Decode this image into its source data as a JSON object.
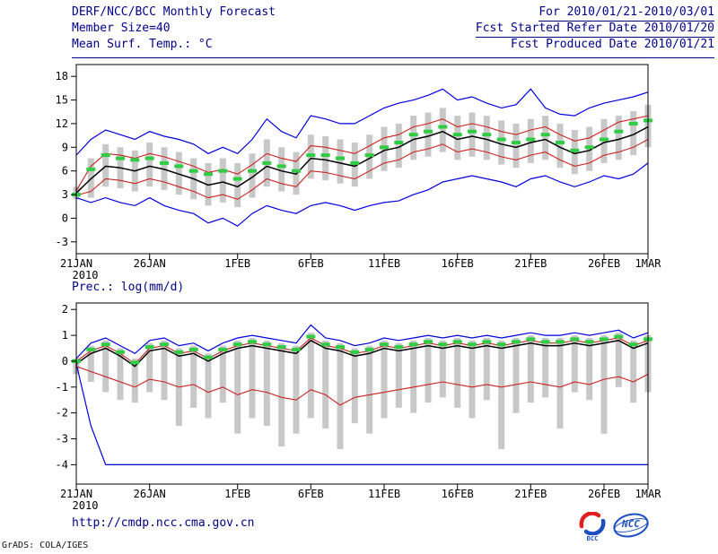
{
  "header": {
    "left": [
      "DERF/NCC/BCC Monthly Forecast",
      "Member Size=40",
      "Mean Surf. Temp.: °C"
    ],
    "right": [
      "For 2010/01/21-2010/03/01",
      "Fcst Started Refer Date 2010/01/20",
      "Fcst Produced Date 2010/01/21"
    ]
  },
  "footer": {
    "url": "http://cmdp.ncc.cma.gov.cn",
    "stamp": "GrADS: COLA/IGES"
  },
  "logos": {
    "bcc": "BCC",
    "ncc": "NCC"
  },
  "colors": {
    "header_text": "#00008b",
    "frame": "#000000",
    "axis_text": "#000000",
    "bar": "#c8c8c8",
    "blue": "#0000e0",
    "red": "#cc2222",
    "black": "#000000",
    "green": "#2fcc44",
    "logo_red": "#e02020",
    "logo_blue": "#1a4fc0"
  },
  "chart_data": [
    {
      "id": "temp-chart",
      "type": "line",
      "title": "Mean Surf. Temp.: °C",
      "xlabel": "",
      "ylabel": "°C",
      "ylim": [
        -3,
        18
      ],
      "ylim_draw": [
        -4.5,
        19.5
      ],
      "yticks": [
        18,
        15,
        12,
        9,
        6,
        3,
        0,
        -3
      ],
      "n": 40,
      "x_start": "21JAN2010",
      "x_end": "1MAR2010",
      "year_label": "2010",
      "grid": false,
      "legend": "none",
      "xticks": [
        {
          "i": 0,
          "label": "21JAN"
        },
        {
          "i": 5,
          "label": "26JAN"
        },
        {
          "i": 11,
          "label": "1FEB"
        },
        {
          "i": 16,
          "label": "6FEB"
        },
        {
          "i": 21,
          "label": "11FEB"
        },
        {
          "i": 26,
          "label": "16FEB"
        },
        {
          "i": 31,
          "label": "21FEB"
        },
        {
          "i": 36,
          "label": "26FEB"
        },
        {
          "i": 39,
          "label": "1MAR"
        }
      ],
      "series": {
        "ens_mean": [
          3.2,
          5.0,
          6.6,
          6.4,
          6.0,
          6.6,
          6.2,
          5.6,
          5.0,
          4.2,
          4.6,
          4.0,
          5.2,
          6.6,
          6.0,
          5.6,
          7.6,
          7.4,
          7.0,
          6.6,
          7.6,
          8.6,
          9.0,
          10.0,
          10.4,
          11.0,
          10.0,
          10.4,
          10.0,
          9.4,
          9.0,
          9.6,
          10.0,
          9.0,
          8.2,
          8.6,
          9.6,
          10.0,
          10.6,
          11.6
        ],
        "sd_upper": [
          3.5,
          6.6,
          8.2,
          8.0,
          7.6,
          8.2,
          7.8,
          7.2,
          6.6,
          5.8,
          6.2,
          5.6,
          6.8,
          8.2,
          7.6,
          7.2,
          9.2,
          9.0,
          8.6,
          8.2,
          9.2,
          10.2,
          10.6,
          11.6,
          12.0,
          12.6,
          11.6,
          12.0,
          11.6,
          11.0,
          10.6,
          11.2,
          11.6,
          10.6,
          9.8,
          10.2,
          11.2,
          12.2,
          12.6,
          13.0
        ],
        "sd_lower": [
          2.9,
          3.4,
          5.0,
          4.8,
          4.4,
          5.0,
          4.6,
          4.0,
          3.4,
          2.6,
          3.0,
          2.4,
          3.6,
          5.0,
          4.4,
          4.0,
          6.0,
          5.8,
          5.4,
          5.0,
          6.0,
          7.0,
          7.4,
          8.4,
          8.8,
          9.4,
          8.4,
          8.8,
          8.4,
          7.8,
          7.4,
          8.0,
          8.4,
          7.4,
          6.6,
          7.0,
          8.0,
          8.4,
          9.0,
          10.0
        ],
        "ens_max": [
          8.0,
          10.0,
          11.2,
          10.6,
          10.0,
          11.0,
          10.4,
          10.0,
          9.4,
          8.2,
          9.0,
          8.2,
          10.0,
          12.6,
          11.0,
          10.2,
          13.0,
          12.6,
          12.0,
          12.0,
          13.0,
          14.0,
          14.6,
          15.0,
          15.6,
          16.4,
          15.0,
          15.4,
          14.6,
          14.0,
          14.4,
          16.4,
          14.0,
          13.2,
          13.0,
          14.0,
          14.6,
          15.0,
          15.4,
          16.0
        ],
        "ens_min": [
          2.6,
          2.0,
          2.6,
          2.0,
          1.6,
          2.6,
          1.6,
          1.0,
          0.6,
          -0.6,
          0.0,
          -1.0,
          0.6,
          1.6,
          1.0,
          0.6,
          1.6,
          2.0,
          1.6,
          1.0,
          1.6,
          2.0,
          2.2,
          3.0,
          3.6,
          4.6,
          5.0,
          5.4,
          5.0,
          4.6,
          4.0,
          5.0,
          5.4,
          4.6,
          4.0,
          4.6,
          5.4,
          5.0,
          5.6,
          7.0
        ],
        "obs": [
          3.0,
          6.2,
          8.0,
          7.6,
          7.4,
          7.6,
          7.0,
          6.6,
          6.0,
          5.6,
          6.0,
          5.0,
          6.0,
          7.0,
          6.6,
          6.0,
          8.0,
          8.0,
          7.6,
          7.0,
          8.0,
          9.0,
          9.6,
          10.6,
          11.0,
          11.6,
          10.6,
          11.0,
          10.6,
          10.0,
          9.6,
          10.0,
          10.6,
          9.6,
          8.6,
          9.0,
          10.0,
          11.0,
          12.0,
          12.4
        ],
        "bar_top": [
          4.0,
          7.6,
          9.4,
          9.0,
          8.6,
          9.6,
          9.0,
          8.4,
          7.6,
          7.0,
          7.6,
          7.0,
          8.2,
          10.0,
          9.0,
          8.4,
          10.6,
          10.4,
          10.0,
          9.6,
          10.6,
          11.6,
          12.0,
          13.0,
          13.4,
          14.0,
          13.0,
          13.4,
          13.0,
          12.4,
          12.0,
          12.6,
          13.0,
          12.0,
          11.2,
          11.6,
          12.6,
          13.0,
          13.6,
          14.4
        ],
        "bar_bottom": [
          2.4,
          2.6,
          4.0,
          3.8,
          3.4,
          4.0,
          3.6,
          3.0,
          2.4,
          1.6,
          2.0,
          1.4,
          2.6,
          4.0,
          3.4,
          3.0,
          5.0,
          4.8,
          4.4,
          4.0,
          5.0,
          6.0,
          6.4,
          7.4,
          7.8,
          8.4,
          7.4,
          7.8,
          7.4,
          6.8,
          6.4,
          7.0,
          7.4,
          6.4,
          5.6,
          6.0,
          7.0,
          7.4,
          8.0,
          9.0
        ]
      }
    },
    {
      "id": "precip-chart",
      "type": "line",
      "title": "Prec.: log(mm/d)",
      "xlabel": "",
      "ylabel": "log(mm/d)",
      "ylim": [
        -4,
        2
      ],
      "ylim_draw": [
        -4.75,
        2.25
      ],
      "yticks": [
        2,
        1,
        0,
        -1,
        -2,
        -3,
        -4
      ],
      "n": 40,
      "x_start": "21JAN2010",
      "x_end": "1MAR2010",
      "year_label": "2010",
      "grid": false,
      "legend": "none",
      "xticks": [
        {
          "i": 0,
          "label": "21JAN"
        },
        {
          "i": 5,
          "label": "26JAN"
        },
        {
          "i": 11,
          "label": "1FEB"
        },
        {
          "i": 16,
          "label": "6FEB"
        },
        {
          "i": 21,
          "label": "11FEB"
        },
        {
          "i": 26,
          "label": "16FEB"
        },
        {
          "i": 31,
          "label": "21FEB"
        },
        {
          "i": 36,
          "label": "26FEB"
        },
        {
          "i": 39,
          "label": "1MAR"
        }
      ],
      "series": {
        "ens_mean": [
          -0.1,
          0.3,
          0.5,
          0.2,
          -0.2,
          0.4,
          0.5,
          0.2,
          0.3,
          0.0,
          0.3,
          0.5,
          0.6,
          0.5,
          0.4,
          0.3,
          0.8,
          0.5,
          0.4,
          0.2,
          0.3,
          0.5,
          0.4,
          0.5,
          0.6,
          0.5,
          0.6,
          0.5,
          0.6,
          0.5,
          0.6,
          0.7,
          0.6,
          0.6,
          0.7,
          0.6,
          0.7,
          0.8,
          0.5,
          0.7
        ],
        "sd_upper": [
          0.0,
          0.4,
          0.6,
          0.3,
          -0.1,
          0.5,
          0.6,
          0.3,
          0.4,
          0.1,
          0.4,
          0.6,
          0.7,
          0.6,
          0.5,
          0.4,
          0.9,
          0.6,
          0.5,
          0.3,
          0.4,
          0.6,
          0.5,
          0.6,
          0.7,
          0.6,
          0.7,
          0.6,
          0.7,
          0.6,
          0.7,
          0.8,
          0.7,
          0.7,
          0.8,
          0.7,
          0.8,
          0.9,
          0.6,
          0.8
        ],
        "sd_lower": [
          -0.2,
          -0.4,
          -0.6,
          -0.8,
          -1.0,
          -0.7,
          -0.8,
          -1.0,
          -0.9,
          -1.2,
          -1.0,
          -1.3,
          -1.1,
          -1.2,
          -1.4,
          -1.5,
          -1.1,
          -1.3,
          -1.7,
          -1.4,
          -1.3,
          -1.2,
          -1.1,
          -1.0,
          -0.9,
          -0.8,
          -0.9,
          -1.0,
          -0.9,
          -1.0,
          -0.9,
          -0.8,
          -0.9,
          -1.0,
          -0.8,
          -0.9,
          -0.7,
          -0.6,
          -0.8,
          -0.5
        ],
        "ens_max": [
          0.1,
          0.7,
          0.9,
          0.6,
          0.3,
          0.8,
          0.9,
          0.6,
          0.7,
          0.4,
          0.7,
          0.9,
          1.0,
          0.9,
          0.8,
          0.7,
          1.4,
          0.9,
          0.8,
          0.6,
          0.7,
          0.9,
          0.8,
          0.9,
          1.0,
          0.9,
          1.0,
          0.9,
          1.0,
          0.9,
          1.0,
          1.1,
          1.0,
          1.0,
          1.1,
          1.0,
          1.1,
          1.2,
          0.9,
          1.1
        ],
        "ens_min": [
          -0.1,
          -2.5,
          -4,
          -4,
          -4,
          -4,
          -4,
          -4,
          -4,
          -4,
          -4,
          -4,
          -4,
          -4,
          -4,
          -4,
          -4,
          -4,
          -4,
          -4,
          -4,
          -4,
          -4,
          -4,
          -4,
          -4,
          -4,
          -4,
          -4,
          -4,
          -4,
          -4,
          -4,
          -4,
          -4,
          -4,
          -4,
          -4,
          -4,
          -4
        ],
        "obs": [
          0.0,
          0.45,
          0.65,
          0.35,
          -0.05,
          0.55,
          0.65,
          0.35,
          0.45,
          0.15,
          0.45,
          0.65,
          0.75,
          0.65,
          0.55,
          0.45,
          0.95,
          0.65,
          0.55,
          0.35,
          0.45,
          0.65,
          0.55,
          0.65,
          0.75,
          0.65,
          0.75,
          0.65,
          0.75,
          0.65,
          0.75,
          0.85,
          0.75,
          0.75,
          0.85,
          0.75,
          0.85,
          0.95,
          0.65,
          0.85
        ],
        "bar_top": [
          0.1,
          0.6,
          0.8,
          0.5,
          0.1,
          0.7,
          0.8,
          0.5,
          0.6,
          0.3,
          0.6,
          0.8,
          0.9,
          0.8,
          0.7,
          0.6,
          1.1,
          0.8,
          0.7,
          0.5,
          0.6,
          0.8,
          0.7,
          0.8,
          0.9,
          0.8,
          0.9,
          0.8,
          0.9,
          0.8,
          0.9,
          1.0,
          0.9,
          0.9,
          1.0,
          0.9,
          1.0,
          1.1,
          0.8,
          1.0
        ],
        "bar_bottom": [
          -0.5,
          -0.8,
          -1.2,
          -1.5,
          -1.6,
          -1.2,
          -1.5,
          -2.5,
          -1.8,
          -2.2,
          -1.6,
          -2.8,
          -2.2,
          -2.5,
          -3.3,
          -2.8,
          -2.2,
          -2.6,
          -3.4,
          -2.4,
          -2.8,
          -2.2,
          -1.8,
          -2.0,
          -1.6,
          -1.4,
          -1.8,
          -2.2,
          -1.5,
          -3.4,
          -2.0,
          -1.6,
          -1.4,
          -2.6,
          -1.2,
          -1.5,
          -2.8,
          -1.0,
          -1.6,
          -1.2
        ]
      }
    }
  ]
}
